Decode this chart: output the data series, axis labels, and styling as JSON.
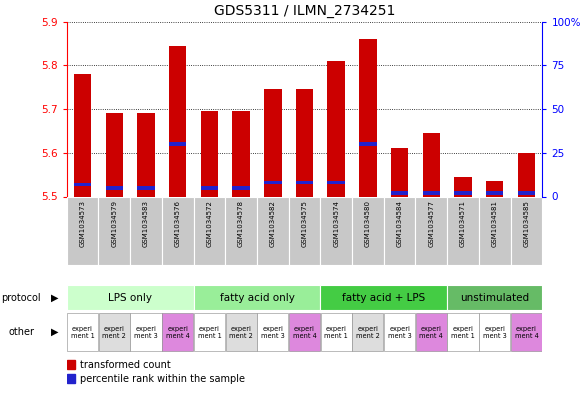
{
  "title": "GDS5311 / ILMN_2734251",
  "samples": [
    "GSM1034573",
    "GSM1034579",
    "GSM1034583",
    "GSM1034576",
    "GSM1034572",
    "GSM1034578",
    "GSM1034582",
    "GSM1034575",
    "GSM1034574",
    "GSM1034580",
    "GSM1034584",
    "GSM1034577",
    "GSM1034571",
    "GSM1034581",
    "GSM1034585"
  ],
  "transformed_counts": [
    5.78,
    5.69,
    5.69,
    5.845,
    5.695,
    5.695,
    5.745,
    5.745,
    5.81,
    5.86,
    5.61,
    5.645,
    5.545,
    5.535,
    5.6
  ],
  "percentile_ranks": [
    7,
    5,
    5,
    30,
    5,
    5,
    8,
    8,
    8,
    30,
    2,
    2,
    2,
    2,
    2
  ],
  "ymin": 5.5,
  "ymax": 5.9,
  "y_ticks_left": [
    5.5,
    5.6,
    5.7,
    5.8,
    5.9
  ],
  "y_ticks_right": [
    0,
    25,
    50,
    75,
    100
  ],
  "bar_color": "#cc0000",
  "percentile_color": "#2222cc",
  "protocol_groups": [
    {
      "label": "LPS only",
      "start": 0,
      "end": 4,
      "color": "#ccffcc"
    },
    {
      "label": "fatty acid only",
      "start": 4,
      "end": 8,
      "color": "#99ee99"
    },
    {
      "label": "fatty acid + LPS",
      "start": 8,
      "end": 12,
      "color": "#44cc44"
    },
    {
      "label": "unstimulated",
      "start": 12,
      "end": 15,
      "color": "#66bb66"
    }
  ],
  "experiment_labels": [
    "experi\nment 1",
    "experi\nment 2",
    "experi\nment 3",
    "experi\nment 4",
    "experi\nment 1",
    "experi\nment 2",
    "experi\nment 3",
    "experi\nment 4",
    "experi\nment 1",
    "experi\nment 2",
    "experi\nment 3",
    "experi\nment 4",
    "experi\nment 1",
    "experi\nment 3",
    "experi\nment 4"
  ],
  "experiment_colors": [
    "#ffffff",
    "#dddddd",
    "#ffffff",
    "#dd88dd",
    "#ffffff",
    "#dddddd",
    "#ffffff",
    "#dd88dd",
    "#ffffff",
    "#dddddd",
    "#ffffff",
    "#dd88dd",
    "#ffffff",
    "#ffffff",
    "#dd88dd"
  ],
  "bg_color": "#c8c8c8",
  "plot_bg": "#ffffff",
  "title_fontsize": 10,
  "tick_fontsize": 7.5,
  "bar_width": 0.55
}
